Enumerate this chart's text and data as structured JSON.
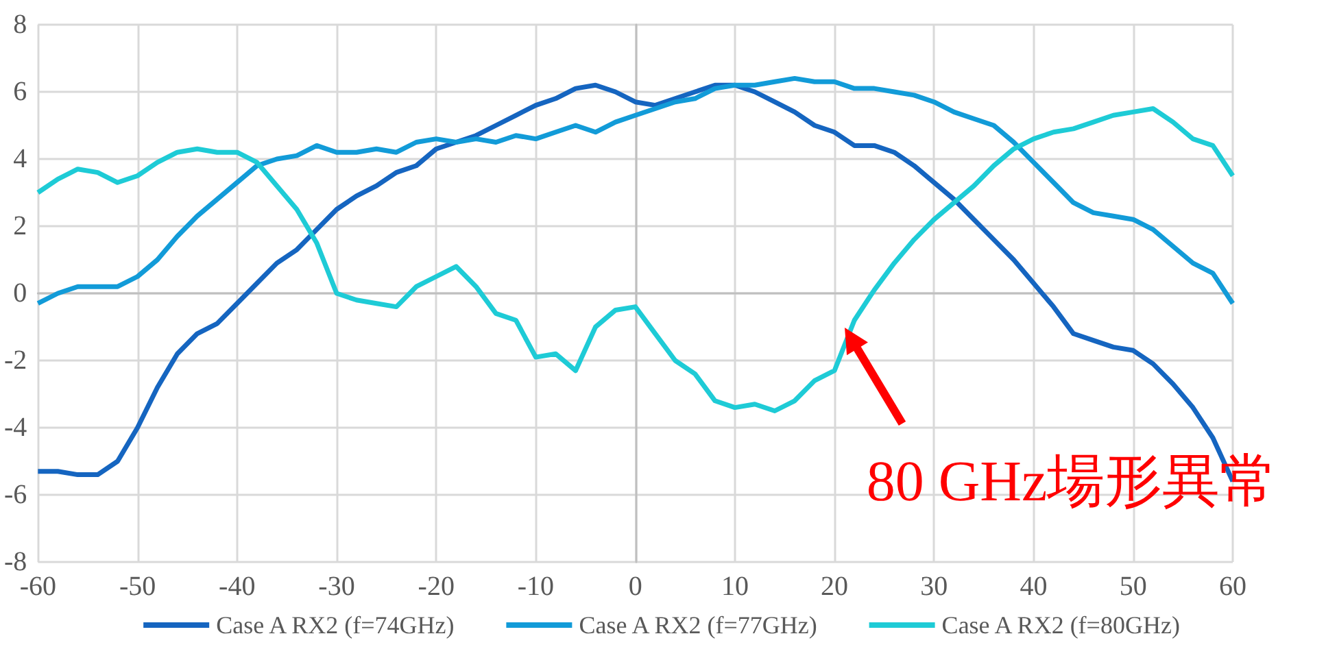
{
  "chart_data": {
    "type": "line",
    "x": [
      -60,
      -58,
      -56,
      -54,
      -52,
      -50,
      -48,
      -46,
      -44,
      -42,
      -40,
      -38,
      -36,
      -34,
      -32,
      -30,
      -28,
      -26,
      -24,
      -22,
      -20,
      -18,
      -16,
      -14,
      -12,
      -10,
      -8,
      -6,
      -4,
      -2,
      0,
      2,
      4,
      6,
      8,
      10,
      12,
      14,
      16,
      18,
      20,
      22,
      24,
      26,
      28,
      30,
      32,
      34,
      36,
      38,
      40,
      42,
      44,
      46,
      48,
      50,
      52,
      54,
      56,
      58,
      60
    ],
    "series": [
      {
        "name": "Case A RX2 (f=74GHz)",
        "color": "#1565c0",
        "values": [
          -5.3,
          -5.3,
          -5.4,
          -5.4,
          -5.0,
          -4.0,
          -2.8,
          -1.8,
          -1.2,
          -0.9,
          -0.3,
          0.3,
          0.9,
          1.3,
          1.9,
          2.5,
          2.9,
          3.2,
          3.6,
          3.8,
          4.3,
          4.5,
          4.7,
          5.0,
          5.3,
          5.6,
          5.8,
          6.1,
          6.2,
          6.0,
          5.7,
          5.6,
          5.8,
          6.0,
          6.2,
          6.2,
          6.0,
          5.7,
          5.4,
          5.0,
          4.8,
          4.4,
          4.4,
          4.2,
          3.8,
          3.3,
          2.8,
          2.2,
          1.6,
          1.0,
          0.3,
          -0.4,
          -1.2,
          -1.4,
          -1.6,
          -1.7,
          -2.1,
          -2.7,
          -3.4,
          -4.3,
          -5.6
        ]
      },
      {
        "name": "Case A RX2 (f=77GHz)",
        "color": "#129bd8",
        "values": [
          -0.3,
          0.0,
          0.2,
          0.2,
          0.2,
          0.5,
          1.0,
          1.7,
          2.3,
          2.8,
          3.3,
          3.8,
          4.0,
          4.1,
          4.4,
          4.2,
          4.2,
          4.3,
          4.2,
          4.5,
          4.6,
          4.5,
          4.6,
          4.5,
          4.7,
          4.6,
          4.8,
          5.0,
          4.8,
          5.1,
          5.3,
          5.5,
          5.7,
          5.8,
          6.1,
          6.2,
          6.2,
          6.3,
          6.4,
          6.3,
          6.3,
          6.1,
          6.1,
          6.0,
          5.9,
          5.7,
          5.4,
          5.2,
          5.0,
          4.5,
          3.9,
          3.3,
          2.7,
          2.4,
          2.3,
          2.2,
          1.9,
          1.4,
          0.9,
          0.6,
          -0.3
        ]
      },
      {
        "name": "Case A RX2 (f=80GHz)",
        "color": "#1ecbd6",
        "values": [
          3.0,
          3.4,
          3.7,
          3.6,
          3.3,
          3.5,
          3.9,
          4.2,
          4.3,
          4.2,
          4.2,
          3.9,
          3.2,
          2.5,
          1.5,
          0.0,
          -0.2,
          -0.3,
          -0.4,
          0.2,
          0.5,
          0.8,
          0.2,
          -0.6,
          -0.8,
          -1.9,
          -1.8,
          -2.3,
          -1.0,
          -0.5,
          -0.4,
          -1.2,
          -2.0,
          -2.4,
          -3.2,
          -3.4,
          -3.3,
          -3.5,
          -3.2,
          -2.6,
          -2.3,
          -0.8,
          0.1,
          0.9,
          1.6,
          2.2,
          2.7,
          3.2,
          3.8,
          4.3,
          4.6,
          4.8,
          4.9,
          5.1,
          5.3,
          5.4,
          5.5,
          5.1,
          4.6,
          4.4,
          3.5
        ]
      }
    ],
    "xlim": [
      -60,
      60
    ],
    "xticks": [
      -60,
      -50,
      -40,
      -30,
      -20,
      -10,
      0,
      10,
      20,
      30,
      40,
      50,
      60
    ],
    "ylim": [
      -8,
      8
    ],
    "yticks": [
      -8,
      -6,
      -4,
      -2,
      0,
      2,
      4,
      6,
      8
    ],
    "grid": true,
    "legend": "bottom",
    "marker": "none",
    "line_style": "solid",
    "annotations": [
      {
        "text": "80 GHz場形異常",
        "x": 21,
        "y": -1.0
      }
    ]
  }
}
